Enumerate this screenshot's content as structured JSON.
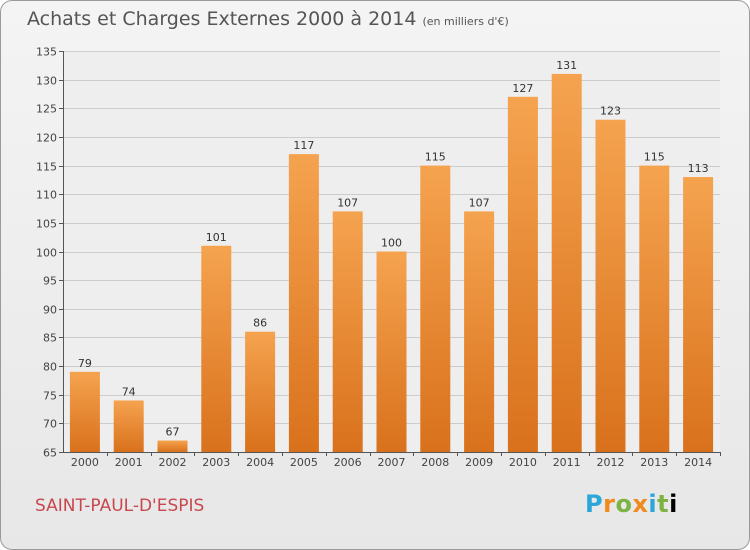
{
  "header": {
    "title": "Achats et Charges Externes 2000 à 2014",
    "unit": "(en milliers d'€)"
  },
  "footer": {
    "city": "SAINT-PAUL-D'ESPIS",
    "logo_letters": [
      "P",
      "r",
      "o",
      "x",
      "i",
      "t",
      "i"
    ]
  },
  "colors": {
    "bar_top": "#f5a34f",
    "bar_bottom": "#d9711c",
    "city": "#c8474f",
    "grid": "#cccccc"
  },
  "chart_data": {
    "type": "bar",
    "title": "Achats et Charges Externes 2000 à 2014",
    "subtitle": "(en milliers d'€)",
    "xlabel": "",
    "ylabel": "",
    "categories": [
      "2000",
      "2001",
      "2002",
      "2003",
      "2004",
      "2005",
      "2006",
      "2007",
      "2008",
      "2009",
      "2010",
      "2011",
      "2012",
      "2013",
      "2014"
    ],
    "values": [
      79,
      74,
      67,
      101,
      86,
      117,
      107,
      100,
      115,
      107,
      127,
      131,
      123,
      115,
      113
    ],
    "ylim": [
      65,
      135
    ],
    "yticks": [
      65,
      70,
      75,
      80,
      85,
      90,
      95,
      100,
      105,
      110,
      115,
      120,
      125,
      130,
      135
    ],
    "grid": "horizontal",
    "data_labels": true
  }
}
